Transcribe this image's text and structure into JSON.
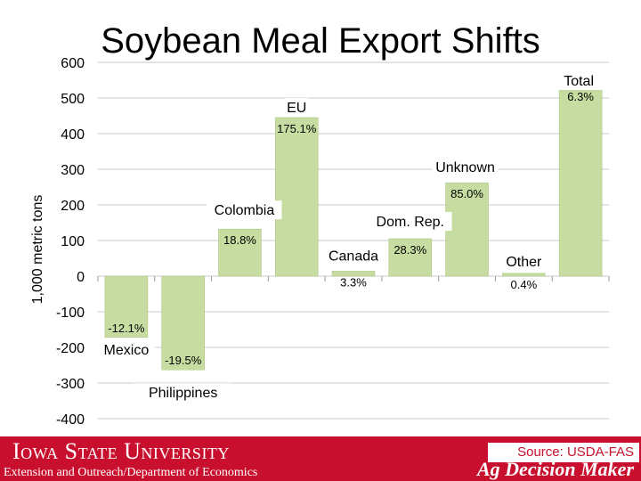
{
  "title": "Soybean Meal Export Shifts",
  "footer": {
    "university": "Iowa State University",
    "department": "Extension and Outreach/Department of Economics",
    "source": "Source: USDA-FAS",
    "brand": "Ag Decision Maker"
  },
  "colors": {
    "bar": "#c6dca0",
    "bar_stroke": "#a9c47b",
    "footer": "#c8102e",
    "grid": "#c9c9c9"
  },
  "chart_data": {
    "type": "bar",
    "title": "Soybean Meal Export Shifts",
    "xlabel": "",
    "ylabel": "1,000 metric tons",
    "ylim": [
      -400,
      600
    ],
    "yticks": [
      600,
      500,
      400,
      300,
      200,
      100,
      0,
      -100,
      -200,
      -300,
      -400
    ],
    "grid": true,
    "categories": [
      "Mexico",
      "Philippines",
      "Colombia",
      "EU",
      "Canada",
      "Dom. Rep.",
      "Unknown",
      "Other",
      "Total"
    ],
    "values": [
      -172,
      -263,
      132,
      445,
      14,
      105,
      262,
      8,
      535
    ],
    "data_labels": [
      "-12.1%",
      "-19.5%",
      "18.8%",
      "175.1%",
      "3.3%",
      "28.3%",
      "85.0%",
      "0.4%",
      "6.3%"
    ]
  }
}
